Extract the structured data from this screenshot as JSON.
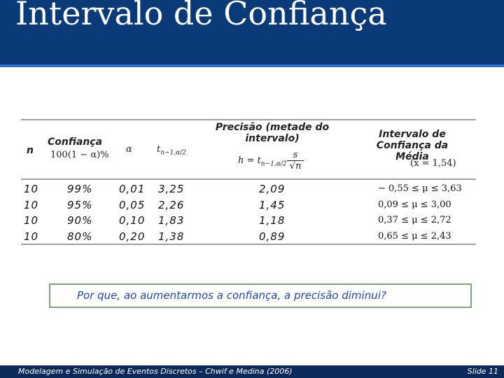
{
  "header": {
    "title": "Intervalo de Confiança"
  },
  "table": {
    "columns": {
      "n": "n",
      "confidence": "Confiança",
      "confidence_formula": "100(1 − α)%",
      "alpha": "α",
      "t": "t",
      "t_sub": "n−1,α/2",
      "precision": "Precisão (metade do intervalo)",
      "precision_formula_h": "h = t",
      "precision_formula_sub": "n−1,α/2",
      "precision_formula_num": "s",
      "precision_formula_den": "√n",
      "interval": "Intervalo de Confiança da Média",
      "interval_formula": "(x̄ = 1,54)"
    },
    "rows": [
      [
        "10",
        "99%",
        "0,01",
        "3,25",
        "2,09",
        "− 0,55 ≤ μ ≤ 3,63"
      ],
      [
        "10",
        "95%",
        "0,05",
        "2,26",
        "1,45",
        "0,09 ≤ μ ≤ 3,00"
      ],
      [
        "10",
        "90%",
        "0,10",
        "1,83",
        "1,18",
        "0,37 ≤ μ ≤ 2,72"
      ],
      [
        "10",
        "80%",
        "0,20",
        "1,38",
        "0,89",
        "0,65 ≤ μ ≤ 2,43"
      ]
    ]
  },
  "question": "Por que, ao aumentarmos a confiança, a precisão diminui?",
  "footer": {
    "text": "Modelagem e Simulação de Eventos Discretos – Chwif e Medina (2006)",
    "slide": "Slide 11"
  }
}
